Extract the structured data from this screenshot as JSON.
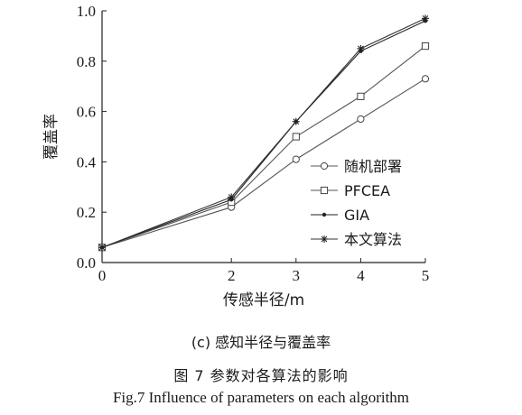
{
  "chart_data": {
    "type": "line",
    "title": "",
    "xlabel": "传感半径/m",
    "ylabel": "覆盖率",
    "x": [
      0,
      2,
      3,
      4,
      5
    ],
    "xticks": [
      "0",
      "2",
      "3",
      "4",
      "5"
    ],
    "yticks": [
      "0.0",
      "0.2",
      "0.4",
      "0.6",
      "0.8",
      "1.0"
    ],
    "xlim": [
      0,
      5
    ],
    "ylim": [
      0,
      1.0
    ],
    "grid": false,
    "legend_position": "bottom-right",
    "series": [
      {
        "name": "随机部署",
        "marker": "circle",
        "values": [
          0.06,
          0.22,
          0.41,
          0.57,
          0.73
        ]
      },
      {
        "name": "PFCEA",
        "marker": "square",
        "values": [
          0.06,
          0.24,
          0.5,
          0.66,
          0.86
        ]
      },
      {
        "name": "GIA",
        "marker": "dot",
        "values": [
          0.06,
          0.25,
          0.56,
          0.84,
          0.96
        ]
      },
      {
        "name": "本文算法",
        "marker": "star",
        "values": [
          0.06,
          0.26,
          0.56,
          0.85,
          0.97
        ]
      }
    ]
  },
  "captions": {
    "sub": "(c)  感知半径与覆盖率",
    "figure_cn": "图 7    参数对各算法的影响",
    "figure_en": "Fig.7    Influence of parameters on each algorithm"
  }
}
